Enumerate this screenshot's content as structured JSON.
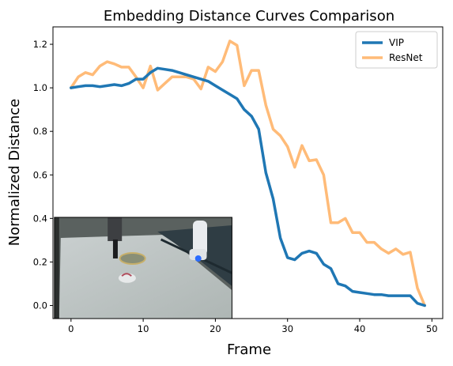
{
  "chart_data": {
    "type": "line",
    "title": "Embedding Distance Curves Comparison",
    "xlabel": "Frame",
    "ylabel": "Normalized Distance",
    "xlim": [
      -2.5,
      51.5
    ],
    "ylim": [
      -0.06,
      1.28
    ],
    "xticks": [
      0,
      10,
      20,
      30,
      40,
      50
    ],
    "yticks": [
      0.0,
      0.2,
      0.4,
      0.6,
      0.8,
      1.0,
      1.2
    ],
    "legend_position": "top-right",
    "grid": false,
    "x": [
      0,
      1,
      2,
      3,
      4,
      5,
      6,
      7,
      8,
      9,
      10,
      11,
      12,
      13,
      14,
      15,
      16,
      17,
      18,
      19,
      20,
      21,
      22,
      23,
      24,
      25,
      26,
      27,
      28,
      29,
      30,
      31,
      32,
      33,
      34,
      35,
      36,
      37,
      38,
      39,
      40,
      41,
      42,
      43,
      44,
      45,
      46,
      47,
      48,
      49
    ],
    "series": [
      {
        "name": "VIP",
        "color": "#1f77b4",
        "values": [
          1.0,
          1.005,
          1.01,
          1.01,
          1.005,
          1.01,
          1.015,
          1.01,
          1.02,
          1.04,
          1.04,
          1.07,
          1.09,
          1.085,
          1.08,
          1.07,
          1.06,
          1.05,
          1.04,
          1.03,
          1.01,
          0.99,
          0.97,
          0.95,
          0.9,
          0.87,
          0.81,
          0.61,
          0.49,
          0.31,
          0.22,
          0.21,
          0.24,
          0.25,
          0.24,
          0.19,
          0.17,
          0.1,
          0.09,
          0.065,
          0.06,
          0.055,
          0.05,
          0.05,
          0.045,
          0.045,
          0.045,
          0.045,
          0.01,
          0.0
        ]
      },
      {
        "name": "ResNet",
        "color": "#ffbb78",
        "values": [
          1.0,
          1.05,
          1.07,
          1.06,
          1.1,
          1.12,
          1.11,
          1.095,
          1.095,
          1.05,
          1.0,
          1.1,
          0.99,
          1.02,
          1.05,
          1.05,
          1.05,
          1.04,
          0.995,
          1.095,
          1.075,
          1.12,
          1.215,
          1.195,
          1.01,
          1.08,
          1.08,
          0.92,
          0.81,
          0.78,
          0.73,
          0.635,
          0.735,
          0.665,
          0.67,
          0.6,
          0.38,
          0.38,
          0.4,
          0.335,
          0.335,
          0.29,
          0.29,
          0.26,
          0.24,
          0.26,
          0.235,
          0.245,
          0.08,
          0.0
        ]
      }
    ]
  },
  "inset": {
    "name": "robot-scene-photo",
    "x_range": [
      -2.3,
      22.3
    ],
    "y_range": [
      -0.06,
      0.405
    ]
  }
}
